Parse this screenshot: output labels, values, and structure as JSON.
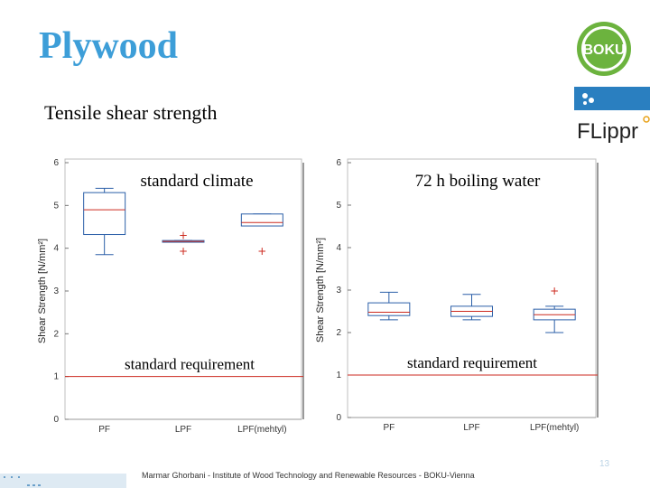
{
  "slide": {
    "title": "Plywood",
    "subtitle": "Tensile shear strength",
    "footer": "Marmar Ghorbani - Institute of Wood Technology and Renewable Resources - BOKU-Vienna",
    "page_number": "13",
    "logo_boku_text": "BOKU",
    "logo_flippr_text": "FLippr"
  },
  "colors": {
    "title": "#3d9ed8",
    "box": "#2b5fa8",
    "median": "#cc2a1f",
    "outlier": "#cc2a1f",
    "requirement_line": "#cc2a1f",
    "boku_green": "#6cb33e",
    "flippr_blue": "#2a7fc0"
  },
  "chart_data": [
    {
      "type": "box",
      "title": "standard climate",
      "ylabel": "Shear Strength [N/mm²]",
      "ylim": [
        0,
        6
      ],
      "yticks": [
        0,
        1,
        2,
        3,
        4,
        5,
        6
      ],
      "categories": [
        "PF",
        "LPF",
        "LPF(mehtyl)"
      ],
      "boxes": [
        {
          "category": "PF",
          "whisker_low": 3.85,
          "q1": 4.32,
          "median": 4.9,
          "q3": 5.3,
          "whisker_high": 5.4,
          "outliers": []
        },
        {
          "category": "LPF",
          "whisker_low": 4.14,
          "q1": 4.14,
          "median": 4.16,
          "q3": 4.18,
          "whisker_high": 4.18,
          "outliers": [
            4.3,
            3.93
          ]
        },
        {
          "category": "LPF(mehtyl)",
          "whisker_low": 4.52,
          "q1": 4.52,
          "median": 4.6,
          "q3": 4.8,
          "whisker_high": 4.8,
          "outliers": [
            3.93
          ]
        }
      ],
      "reference_line": {
        "value": 1,
        "label": "standard requirement"
      },
      "grid": false
    },
    {
      "type": "box",
      "title": "72 h boiling water",
      "ylabel": "Shear Strength [N/mm²]",
      "ylim": [
        0,
        6
      ],
      "yticks": [
        0,
        1,
        2,
        3,
        4,
        5,
        6
      ],
      "categories": [
        "PF",
        "LPF",
        "LPF(mehtyl)"
      ],
      "boxes": [
        {
          "category": "PF",
          "whisker_low": 2.3,
          "q1": 2.4,
          "median": 2.48,
          "q3": 2.7,
          "whisker_high": 2.95,
          "outliers": []
        },
        {
          "category": "LPF",
          "whisker_low": 2.3,
          "q1": 2.38,
          "median": 2.5,
          "q3": 2.62,
          "whisker_high": 2.9,
          "outliers": []
        },
        {
          "category": "LPF(mehtyl)",
          "whisker_low": 2.0,
          "q1": 2.3,
          "median": 2.42,
          "q3": 2.55,
          "whisker_high": 2.62,
          "outliers": [
            2.98
          ]
        }
      ],
      "reference_line": {
        "value": 1,
        "label": "standard requirement"
      },
      "grid": false
    }
  ]
}
